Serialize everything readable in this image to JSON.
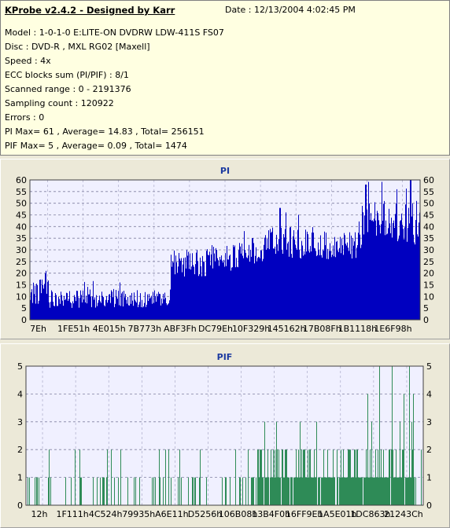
{
  "info": {
    "title": "KProbe v2.4.2 - Designed by Karr",
    "date": "Date : 12/13/2004 4:02:45 PM",
    "lines": [
      "Model : 1-0-1-0 E:LITE-ON DVDRW LDW-411S   FS07",
      "Disc : DVD-R , MXL RG02 [Maxell]",
      "Speed : 4x",
      "ECC blocks sum (PI/PIF) : 8/1",
      "Scanned range : 0 - 2191376",
      "Sampling count : 120922",
      "Errors : 0",
      "PI Max= 61 , Average= 14.83 , Total= 256151",
      "PIF Max= 5 , Average= 0.09 , Total= 1474"
    ]
  },
  "chart_data": [
    {
      "type": "bar",
      "title": "PI",
      "ylim": [
        0,
        60
      ],
      "yticks": [
        0,
        5,
        10,
        15,
        20,
        25,
        30,
        35,
        40,
        45,
        50,
        55,
        60
      ],
      "xtick_labels": [
        "7Eh",
        "1FE51h",
        "4E015h",
        "7B773h",
        "ABF3Fh",
        "DC79Eh",
        "10F329h",
        "145162h",
        "17B08Fh",
        "1B1118h",
        "1E6F98h"
      ],
      "grid": true,
      "color": "#0000c0",
      "background": "#f0f0ff",
      "segments": [
        {
          "from": 0.0,
          "to": 0.02,
          "mean": 11,
          "spread": 5
        },
        {
          "from": 0.02,
          "to": 0.05,
          "mean": 12,
          "spread": 8
        },
        {
          "from": 0.05,
          "to": 0.36,
          "mean": 9,
          "spread": 4
        },
        {
          "from": 0.36,
          "to": 0.45,
          "mean": 24,
          "spread": 6
        },
        {
          "from": 0.45,
          "to": 0.6,
          "mean": 27,
          "spread": 6
        },
        {
          "from": 0.6,
          "to": 0.72,
          "mean": 33,
          "spread": 7
        },
        {
          "from": 0.72,
          "to": 0.85,
          "mean": 32,
          "spread": 6
        },
        {
          "from": 0.85,
          "to": 0.92,
          "mean": 44,
          "spread": 8
        },
        {
          "from": 0.92,
          "to": 1.0,
          "mean": 40,
          "spread": 10
        }
      ],
      "peaks": [
        {
          "at": 0.04,
          "value": 21
        },
        {
          "at": 0.23,
          "value": 16
        },
        {
          "at": 0.64,
          "value": 48
        },
        {
          "at": 0.57,
          "value": 35
        },
        {
          "at": 0.86,
          "value": 58
        },
        {
          "at": 0.94,
          "value": 56
        },
        {
          "at": 0.975,
          "value": 61
        },
        {
          "at": 0.99,
          "value": 51
        }
      ]
    },
    {
      "type": "bar",
      "title": "PIF",
      "ylim": [
        0,
        5
      ],
      "yticks": [
        0,
        1,
        2,
        3,
        4,
        5
      ],
      "xtick_labels": [
        "12h",
        "1F111h",
        "4C524h",
        "79935h",
        "A6E11h",
        "D5256h",
        "106B08h",
        "13B4F0h",
        "16FF9Eh",
        "1A5E01h",
        "1DC863h",
        "21243Ch"
      ],
      "grid": true,
      "color": "#2e8b57",
      "background": "#f0f0ff",
      "dense_region": {
        "from": 0.565,
        "to": 0.98
      },
      "spikes": [
        {
          "at": 0.6,
          "value": 3
        },
        {
          "at": 0.63,
          "value": 3
        },
        {
          "at": 0.69,
          "value": 3
        },
        {
          "at": 0.73,
          "value": 3
        },
        {
          "at": 0.86,
          "value": 4
        },
        {
          "at": 0.87,
          "value": 3
        },
        {
          "at": 0.89,
          "value": 5
        },
        {
          "at": 0.92,
          "value": 5
        },
        {
          "at": 0.94,
          "value": 3
        },
        {
          "at": 0.95,
          "value": 4
        },
        {
          "at": 0.965,
          "value": 5
        },
        {
          "at": 0.97,
          "value": 3
        },
        {
          "at": 0.975,
          "value": 4
        }
      ]
    }
  ]
}
